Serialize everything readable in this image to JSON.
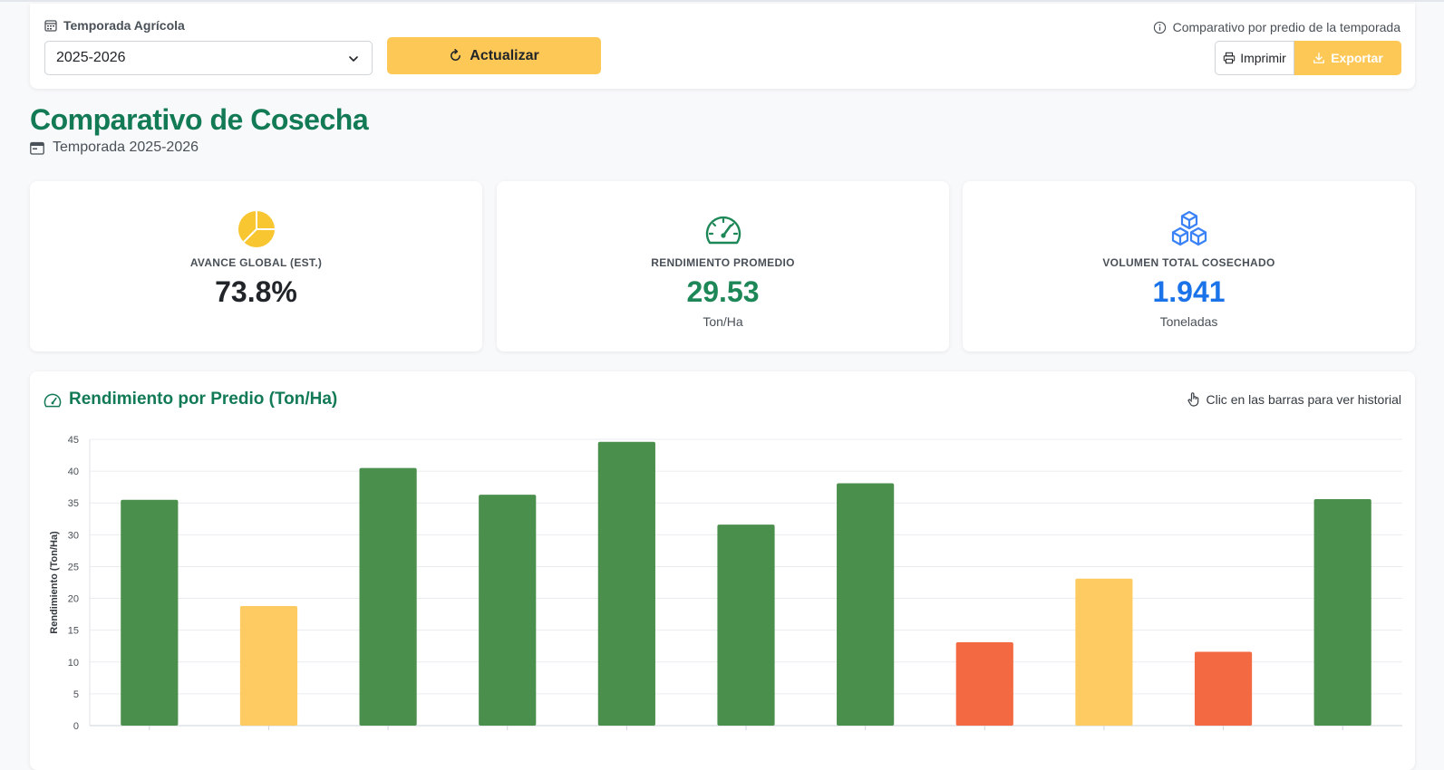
{
  "filter": {
    "season_label": "Temporada Agrícola",
    "season_value": "2025-2026",
    "update_label": "Actualizar",
    "info_text": "Comparativo por predio de la temporada",
    "print_label": "Imprimir",
    "export_label": "Exportar"
  },
  "header": {
    "title": "Comparativo de Cosecha",
    "subtitle": "Temporada 2025-2026"
  },
  "kpis": [
    {
      "label": "AVANCE GLOBAL (EST.)",
      "value": "73.8%",
      "unit": "",
      "icon": "pie-chart-icon",
      "color": "#212529",
      "icon_color": "#f8c630"
    },
    {
      "label": "RENDIMIENTO PROMEDIO",
      "value": "29.53",
      "unit": "Ton/Ha",
      "icon": "speedometer-icon",
      "color": "#1e8757",
      "icon_color": "#1e8757"
    },
    {
      "label": "VOLUMEN TOTAL COSECHADO",
      "value": "1.941",
      "unit": "Toneladas",
      "icon": "boxes-icon",
      "color": "#1a73e8",
      "icon_color": "#3b82f6"
    }
  ],
  "chart": {
    "title": "Rendimiento por Predio (Ton/Ha)",
    "hint": "Clic en las barras para ver historial"
  },
  "colors": {
    "high": "#4b8f4d",
    "medium": "#fecb63",
    "low": "#f36a42"
  },
  "chart_data": {
    "type": "bar",
    "ylabel": "Rendimiento (Ton/Ha)",
    "ylim": [
      0,
      45
    ],
    "yticks": [
      0,
      5,
      10,
      15,
      20,
      25,
      30,
      35,
      40,
      45
    ],
    "grid": true,
    "values": [
      35.5,
      18.8,
      40.5,
      36.3,
      44.6,
      31.6,
      38.1,
      13.1,
      23.1,
      11.6,
      35.6
    ],
    "levels": [
      "high",
      "medium",
      "high",
      "high",
      "high",
      "high",
      "high",
      "low",
      "medium",
      "low",
      "high"
    ]
  }
}
